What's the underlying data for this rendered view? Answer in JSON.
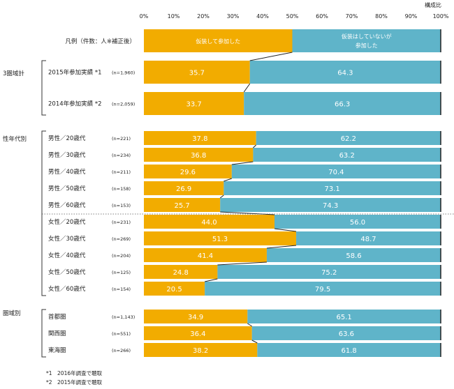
{
  "chart_data": {
    "type": "bar",
    "stacked": true,
    "orientation": "horizontal",
    "unit_label": "構成比",
    "xlim": [
      0,
      100
    ],
    "x_ticks": [
      "0%",
      "10%",
      "20%",
      "30%",
      "40%",
      "50%",
      "60%",
      "70%",
      "80%",
      "90%",
      "100%"
    ],
    "legend_row": {
      "label": "凡例（件数：人※補正後）",
      "value": 50,
      "series_labels": [
        "仮装して参加した",
        "仮装はしていないが参加した"
      ]
    },
    "series_colors": [
      "#F2AC00",
      "#5FB4C9"
    ],
    "groups": [
      {
        "name": "3圏域計",
        "rows": [
          {
            "label": "2015年参加実績 *1",
            "n": "(n=1,960)",
            "values": [
              35.7,
              64.3
            ]
          },
          {
            "label": "2014年参加実績 *2",
            "n": "(n=2,059)",
            "values": [
              33.7,
              66.3
            ]
          }
        ]
      },
      {
        "name": "性年代別",
        "rows": [
          {
            "label": "男性／20歳代",
            "n": "(n=221)",
            "values": [
              37.8,
              62.2
            ]
          },
          {
            "label": "男性／30歳代",
            "n": "(n=234)",
            "values": [
              36.8,
              63.2
            ]
          },
          {
            "label": "男性／40歳代",
            "n": "(n=211)",
            "values": [
              29.6,
              70.4
            ]
          },
          {
            "label": "男性／50歳代",
            "n": "(n=158)",
            "values": [
              26.9,
              73.1
            ]
          },
          {
            "label": "男性／60歳代",
            "n": "(n=153)",
            "values": [
              25.7,
              74.3
            ]
          },
          {
            "label": "女性／20歳代",
            "n": "(n=231)",
            "values": [
              44.0,
              56.0
            ]
          },
          {
            "label": "女性／30歳代",
            "n": "(n=269)",
            "values": [
              51.3,
              48.7
            ]
          },
          {
            "label": "女性／40歳代",
            "n": "(n=204)",
            "values": [
              41.4,
              58.6
            ]
          },
          {
            "label": "女性／50歳代",
            "n": "(n=125)",
            "values": [
              24.8,
              75.2
            ]
          },
          {
            "label": "女性／60歳代",
            "n": "(n=154)",
            "values": [
              20.5,
              79.5
            ]
          }
        ]
      },
      {
        "name": "圏域別",
        "rows": [
          {
            "label": "首都圏",
            "n": "(n=1,143)",
            "values": [
              34.9,
              65.1
            ]
          },
          {
            "label": "関西圏",
            "n": "(n=551)",
            "values": [
              36.4,
              63.6
            ]
          },
          {
            "label": "東海圏",
            "n": "(n=266)",
            "values": [
              38.2,
              61.8
            ]
          }
        ]
      }
    ],
    "footnotes": [
      "*1　2016年調査で聴取",
      "*2　2015年調査で聴取"
    ]
  }
}
